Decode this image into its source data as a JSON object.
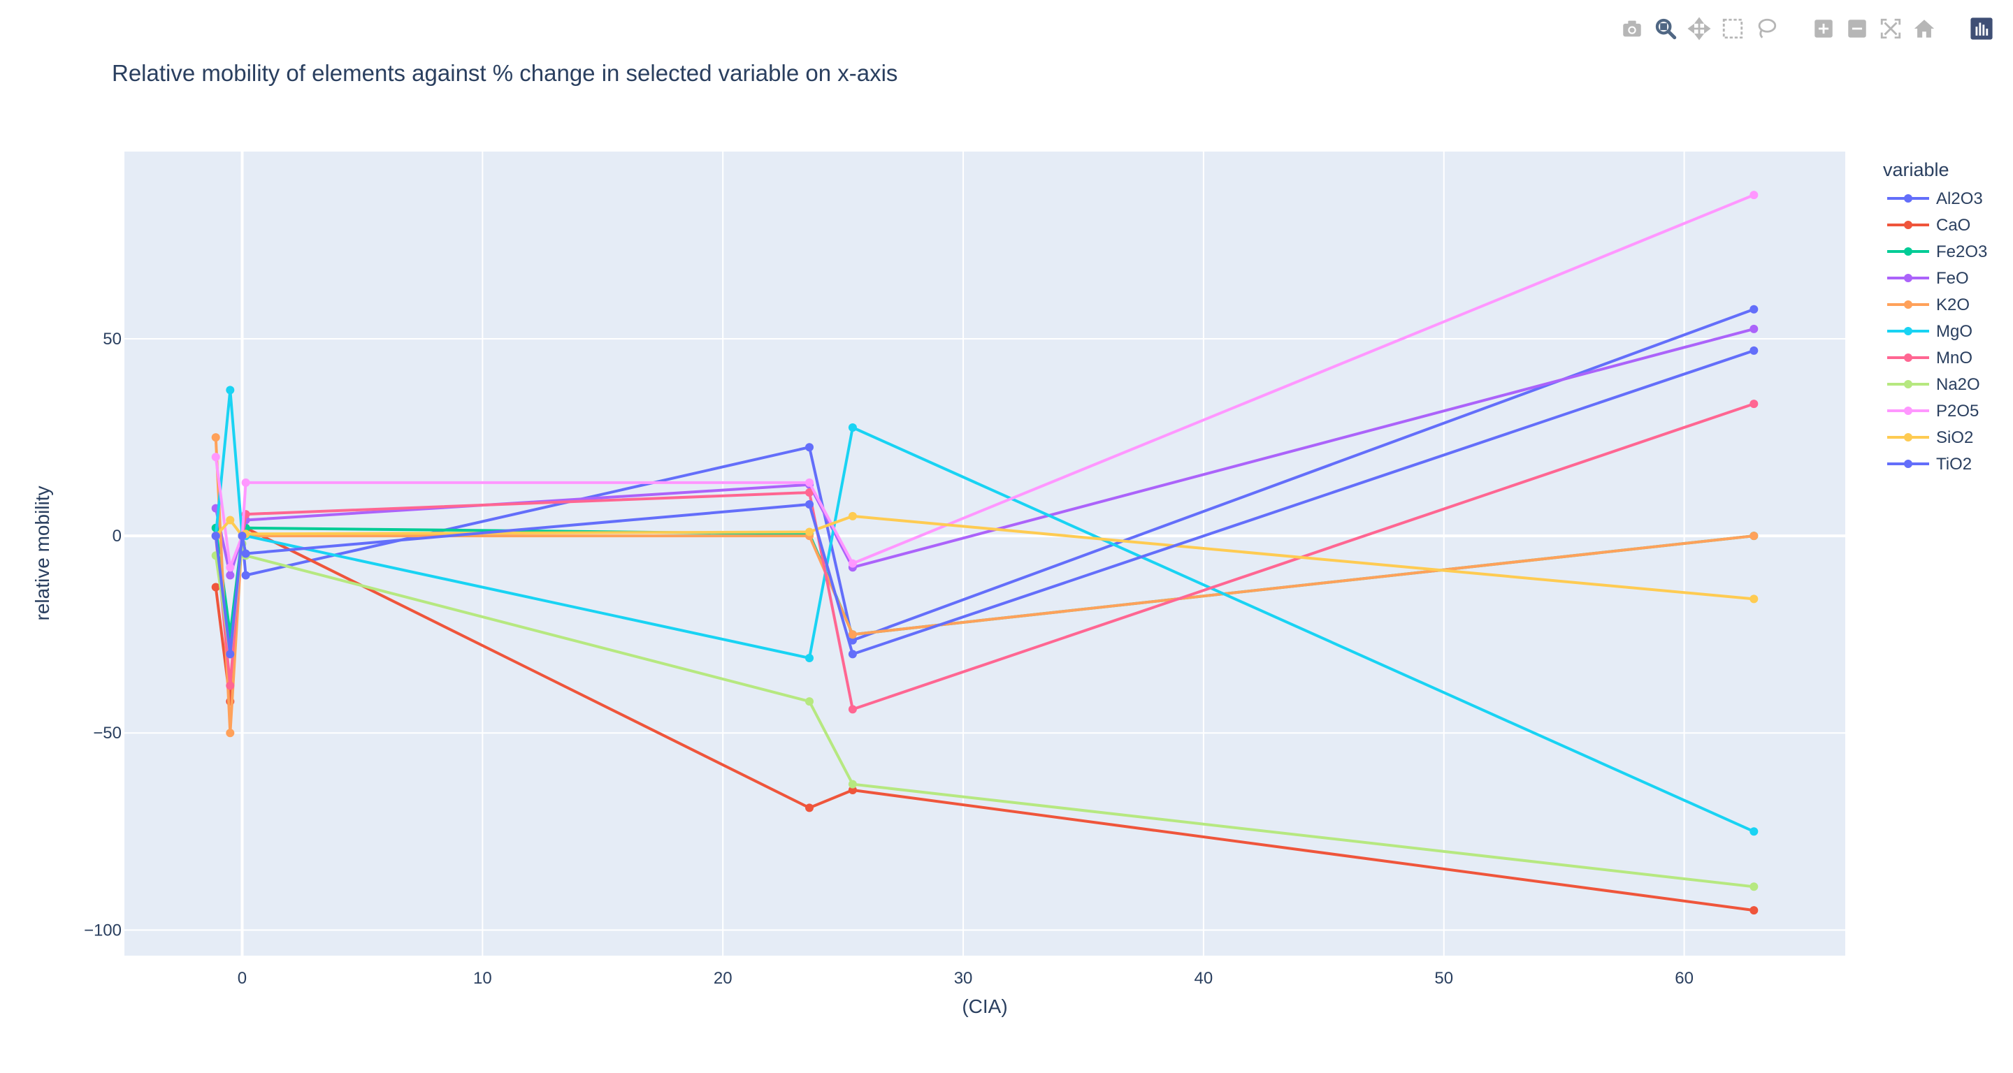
{
  "modebar": {
    "buttons": [
      {
        "icon": "camera-icon",
        "name": "download-plot-button"
      },
      {
        "icon": "zoom-icon",
        "name": "zoom-button",
        "active": true
      },
      {
        "icon": "pan-icon",
        "name": "pan-button"
      },
      {
        "icon": "box-select-icon",
        "name": "box-select-button"
      },
      {
        "icon": "lasso-select-icon",
        "name": "lasso-select-button"
      },
      {
        "icon": "zoom-in-icon",
        "name": "zoom-in-button"
      },
      {
        "icon": "zoom-out-icon",
        "name": "zoom-out-button"
      },
      {
        "icon": "autoscale-icon",
        "name": "autoscale-button"
      },
      {
        "icon": "home-icon",
        "name": "reset-axes-button"
      },
      {
        "icon": "plotly-logo-icon",
        "name": "plotly-logo-button"
      }
    ]
  },
  "chart_data": {
    "type": "line",
    "title": "Relative mobility of elements against % change in selected variable on x-axis",
    "xlabel": "(CIA)",
    "ylabel": "relative mobility",
    "xlim": [
      -4.9,
      66.7
    ],
    "ylim": [
      -106.5,
      97.5
    ],
    "xticks": [
      0,
      10,
      20,
      30,
      40,
      50,
      60
    ],
    "yticks": [
      -100,
      -50,
      0,
      50
    ],
    "grid": true,
    "legend_title": "variable",
    "legend_position": "right",
    "colors": {
      "plot_bg": "#e5ecf6",
      "grid": "#ffffff",
      "text": "#2a3f5f"
    },
    "x": [
      -1.1,
      -0.5,
      0,
      0.15,
      23.6,
      25.4,
      62.9
    ],
    "series": [
      {
        "name": "Al2O3",
        "color": "#636efa",
        "values": [
          0,
          -28,
          0,
          -10,
          22.5,
          -26.5,
          57.5
        ]
      },
      {
        "name": "CaO",
        "color": "#ef553b",
        "values": [
          -13,
          -42,
          0,
          2,
          -69,
          -64.5,
          -95
        ]
      },
      {
        "name": "Fe2O3",
        "color": "#00cc96",
        "values": [
          2,
          -25,
          0,
          2,
          0.5,
          -25,
          0
        ]
      },
      {
        "name": "FeO",
        "color": "#ab63fa",
        "values": [
          7,
          -10,
          0,
          4,
          13,
          -8,
          52.5
        ]
      },
      {
        "name": "K2O",
        "color": "#ffa15a",
        "values": [
          25,
          -50,
          0,
          0,
          0,
          -25,
          0
        ]
      },
      {
        "name": "MgO",
        "color": "#19d3f3",
        "values": [
          0,
          37,
          0,
          0,
          -31,
          27.5,
          -75
        ]
      },
      {
        "name": "MnO",
        "color": "#ff6692",
        "values": [
          0,
          -38,
          0,
          5.5,
          11,
          -44,
          33.5
        ]
      },
      {
        "name": "Na2O",
        "color": "#b6e880",
        "values": [
          -5,
          -30,
          -2,
          -5,
          -42,
          -63,
          -89
        ]
      },
      {
        "name": "P2O5",
        "color": "#ff97ff",
        "values": [
          20,
          -8,
          0,
          13.5,
          13.5,
          -7,
          86.5
        ]
      },
      {
        "name": "SiO2",
        "color": "#fecb52",
        "values": [
          0,
          4,
          0,
          0.5,
          1,
          5,
          -16
        ]
      },
      {
        "name": "TiO2",
        "color": "#636efa",
        "values": [
          0,
          -30,
          0,
          -4.5,
          8,
          -30,
          47
        ]
      }
    ]
  }
}
